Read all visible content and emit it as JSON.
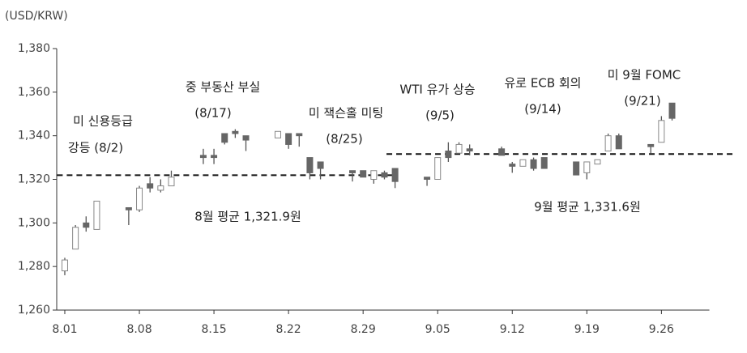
{
  "chart_data": {
    "type": "candlestick",
    "unit_label": "(USD/KRW)",
    "categories": [
      "8.01",
      null,
      null,
      null,
      null,
      null,
      null,
      "8.08",
      null,
      null,
      null,
      null,
      null,
      null,
      "8.15",
      null,
      null,
      null,
      null,
      null,
      null,
      "8.22",
      null,
      null,
      null,
      null,
      null,
      null,
      "8.29",
      null,
      null,
      null,
      null,
      null,
      null,
      "9.05",
      null,
      null,
      null,
      null,
      null,
      null,
      "9.12",
      null,
      null,
      null,
      null,
      null,
      null,
      "9.19",
      null,
      null,
      null,
      null,
      null,
      null,
      "9.26",
      null,
      null,
      null,
      null
    ],
    "open": [
      1278,
      1288,
      1300,
      1297,
      null,
      null,
      1307,
      1306,
      1318,
      1315,
      1317,
      null,
      null,
      1331,
      1331,
      1341,
      1342,
      1340,
      null,
      null,
      1339,
      1341,
      1341,
      1330,
      1328,
      null,
      null,
      1324,
      1324,
      1320,
      1323,
      1325,
      null,
      null,
      1321,
      1320,
      1333,
      1332,
      1334,
      null,
      null,
      1334,
      1327,
      1326,
      1329,
      1330,
      null,
      null,
      1328,
      1323,
      1327,
      1333,
      1340,
      null,
      null,
      1336,
      1337,
      1355,
      null,
      null,
      null
    ],
    "high": [
      1284,
      1299,
      1303,
      1310,
      null,
      null,
      1307,
      1317,
      1321,
      1320,
      1324,
      null,
      null,
      1334,
      1334,
      1341,
      1343,
      1340,
      null,
      null,
      1342,
      1341,
      1341,
      1330,
      1328,
      null,
      null,
      1324,
      1324,
      1324,
      1324,
      1325,
      null,
      null,
      1321,
      1330,
      1337,
      1337,
      1336,
      null,
      null,
      1335,
      1328,
      1329,
      1330,
      1330,
      null,
      null,
      1328,
      1328,
      1329,
      1341,
      1341,
      null,
      null,
      1336,
      1349,
      1355,
      null,
      null,
      null
    ],
    "low": [
      1276,
      1288,
      1296,
      1297,
      null,
      null,
      1299,
      1305,
      1314,
      1314,
      1317,
      null,
      null,
      1327,
      1327,
      1336,
      1339,
      1333,
      null,
      null,
      1339,
      1334,
      1335,
      1320,
      1320,
      null,
      null,
      1319,
      1321,
      1318,
      1320,
      1316,
      null,
      null,
      1317,
      1320,
      1328,
      1332,
      1331,
      null,
      null,
      1331,
      1323,
      1326,
      1324,
      1325,
      null,
      null,
      1322,
      1320,
      1327,
      1333,
      1334,
      null,
      null,
      1332,
      1337,
      1347,
      null,
      null,
      null
    ],
    "close": [
      1283,
      1298,
      1298,
      1310,
      null,
      null,
      1306,
      1316,
      1316,
      1317,
      1321,
      null,
      null,
      1330,
      1330,
      1337,
      1341,
      1338,
      null,
      null,
      1342,
      1336,
      1340,
      1323,
      1325,
      null,
      null,
      1323,
      1321,
      1324,
      1321,
      1319,
      null,
      null,
      1320,
      1330,
      1330,
      1336,
      1333,
      null,
      null,
      1331,
      1326,
      1329,
      1325,
      1325,
      null,
      null,
      1322,
      1328,
      1329,
      1340,
      1334,
      null,
      null,
      1335,
      1347,
      1348,
      null,
      null,
      null
    ],
    "up_color": "#ffffff",
    "down_color": "#666666",
    "edge_color": "#555555",
    "ylim": [
      1260,
      1380
    ],
    "yticks": [
      {
        "value": 1260,
        "label": "1,260"
      },
      {
        "value": 1280,
        "label": "1,280"
      },
      {
        "value": 1300,
        "label": "1,300"
      },
      {
        "value": 1320,
        "label": "1,320"
      },
      {
        "value": 1340,
        "label": "1,340"
      },
      {
        "value": 1360,
        "label": "1,360"
      },
      {
        "value": 1380,
        "label": "1,380"
      }
    ],
    "grid": false,
    "averages": [
      {
        "label": "8월 평균 1,321.9원",
        "value": 1321.9
      },
      {
        "label": "9월 평균 1,331.6원",
        "value": 1331.6
      }
    ],
    "annotations": [
      {
        "lines": [
          "미  신용등급",
          "강등 (8/2)"
        ]
      },
      {
        "lines": [
          "중 부동산 부실",
          "(8/17)"
        ]
      },
      {
        "lines": [
          "미 잭슨홀 미팅",
          "(8/25)"
        ]
      },
      {
        "lines": [
          "WTI 유가 상승",
          "(9/5)"
        ]
      },
      {
        "lines": [
          "유로 ECB 회의",
          "(9/14)"
        ]
      },
      {
        "lines": [
          "미 9월 FOMC",
          "(9/21)"
        ]
      }
    ]
  }
}
